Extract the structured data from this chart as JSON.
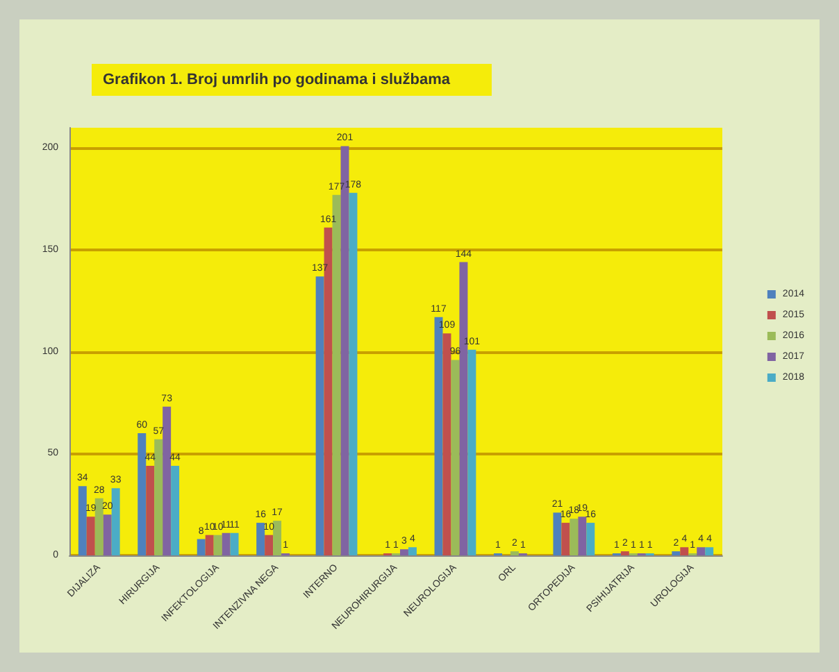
{
  "chart_data": {
    "type": "bar",
    "title": "Grafikon 1. Broj umrlih po godinama i službama",
    "categories": [
      "DIJALIZA",
      "HIRURGIJA",
      "INFEKTOLOGIJA",
      "INTENZIVNA NEGA",
      "INTERNO",
      "NEUROHIRURGIJA",
      "NEUROLOGIJA",
      "ORL",
      "ORTOPEDIJA",
      "PSIHIJATRIJA",
      "UROLOGIJA"
    ],
    "series": [
      {
        "name": "2014",
        "color": "#4f81bd",
        "values": [
          34,
          60,
          8,
          16,
          137,
          null,
          117,
          1,
          21,
          1,
          2
        ]
      },
      {
        "name": "2015",
        "color": "#c0504d",
        "values": [
          19,
          44,
          10,
          10,
          161,
          1,
          109,
          null,
          16,
          2,
          4
        ]
      },
      {
        "name": "2016",
        "color": "#9bbb59",
        "values": [
          28,
          57,
          10,
          17,
          177,
          1,
          96,
          2,
          18,
          1,
          1
        ]
      },
      {
        "name": "2017",
        "color": "#8064a2",
        "values": [
          20,
          73,
          11,
          1,
          201,
          3,
          144,
          1,
          19,
          1,
          4
        ]
      },
      {
        "name": "2018",
        "color": "#4bacc6",
        "values": [
          33,
          44,
          11,
          null,
          178,
          4,
          101,
          null,
          16,
          1,
          4
        ]
      }
    ],
    "ylim": [
      0,
      210
    ],
    "yticks": [
      0,
      50,
      100,
      150,
      200
    ],
    "grid": "y",
    "legend": "right",
    "data_labels": true
  }
}
